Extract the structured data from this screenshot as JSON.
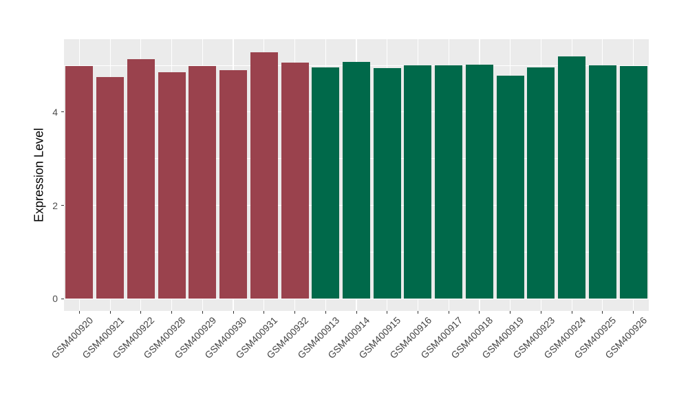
{
  "chart": {
    "panel_background": "#EBEBEB",
    "figure_background": "#FFFFFF",
    "grid_color": "#FFFFFF",
    "tick_mark_color": "#333333",
    "axis_text_color": "#4D4D4D",
    "axis_title_color": "#000000"
  },
  "chart_data": {
    "type": "bar",
    "title": "",
    "xlabel": "",
    "ylabel": "Expression Level",
    "ylim": [
      -0.26,
      5.56
    ],
    "yticks": [
      0,
      2,
      4
    ],
    "yticks_minor": [
      1,
      3,
      5
    ],
    "grid": "white major and minor lines on grey panel (ggplot default)",
    "legend_position": "none",
    "categories": [
      "GSM400920",
      "GSM400921",
      "GSM400922",
      "GSM400928",
      "GSM400929",
      "GSM400930",
      "GSM400931",
      "GSM400932",
      "GSM400913",
      "GSM400914",
      "GSM400915",
      "GSM400916",
      "GSM400917",
      "GSM400918",
      "GSM400919",
      "GSM400923",
      "GSM400924",
      "GSM400925",
      "GSM400926"
    ],
    "series": [
      {
        "name": "Expression Level",
        "values": [
          4.98,
          4.75,
          5.13,
          4.86,
          4.98,
          4.89,
          5.28,
          5.06,
          4.96,
          5.07,
          4.94,
          5.0,
          5.0,
          5.01,
          4.78,
          4.95,
          5.19,
          5.0,
          4.99
        ]
      }
    ],
    "groups": [
      "red",
      "red",
      "red",
      "red",
      "red",
      "red",
      "red",
      "red",
      "green",
      "green",
      "green",
      "green",
      "green",
      "green",
      "green",
      "green",
      "green",
      "green",
      "green"
    ],
    "group_colors": {
      "red": "#9A424D",
      "green": "#00694A"
    }
  }
}
